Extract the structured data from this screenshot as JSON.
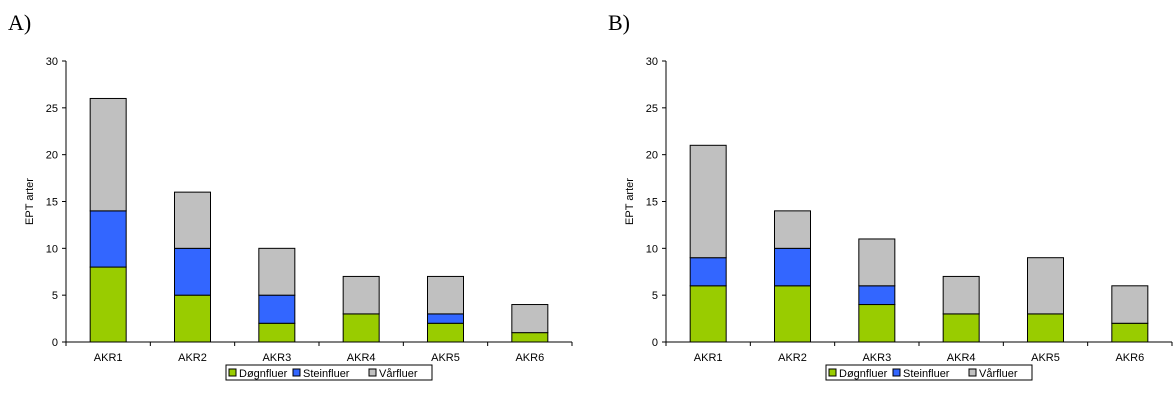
{
  "chart_data": [
    {
      "panel_label": "A)",
      "type": "bar",
      "stacked": true,
      "categories": [
        "AKR1",
        "AKR2",
        "AKR3",
        "AKR4",
        "AKR5",
        "AKR6"
      ],
      "series": [
        {
          "name": "Døgnfluer",
          "color": "#99cc00",
          "values": [
            8,
            5,
            2,
            3,
            2,
            1
          ]
        },
        {
          "name": "Steinfluer",
          "color": "#3366ff",
          "values": [
            6,
            5,
            3,
            0,
            1,
            0
          ]
        },
        {
          "name": "Vårfluer",
          "color": "#c0c0c0",
          "values": [
            12,
            6,
            5,
            4,
            4,
            3
          ]
        }
      ],
      "ylabel": "EPT arter",
      "ylim": [
        0,
        30
      ],
      "yticks": [
        0,
        5,
        10,
        15,
        20,
        25,
        30
      ],
      "legend": "bottom"
    },
    {
      "panel_label": "B)",
      "type": "bar",
      "stacked": true,
      "categories": [
        "AKR1",
        "AKR2",
        "AKR3",
        "AKR4",
        "AKR5",
        "AKR6"
      ],
      "series": [
        {
          "name": "Døgnfluer",
          "color": "#99cc00",
          "values": [
            6,
            6,
            4,
            3,
            3,
            2
          ]
        },
        {
          "name": "Steinfluer",
          "color": "#3366ff",
          "values": [
            3,
            4,
            2,
            0,
            0,
            0
          ]
        },
        {
          "name": "Vårfluer",
          "color": "#c0c0c0",
          "values": [
            12,
            4,
            5,
            4,
            6,
            4
          ]
        }
      ],
      "ylabel": "EPT arter",
      "ylim": [
        0,
        30
      ],
      "yticks": [
        0,
        5,
        10,
        15,
        20,
        25,
        30
      ],
      "legend": "bottom"
    }
  ]
}
